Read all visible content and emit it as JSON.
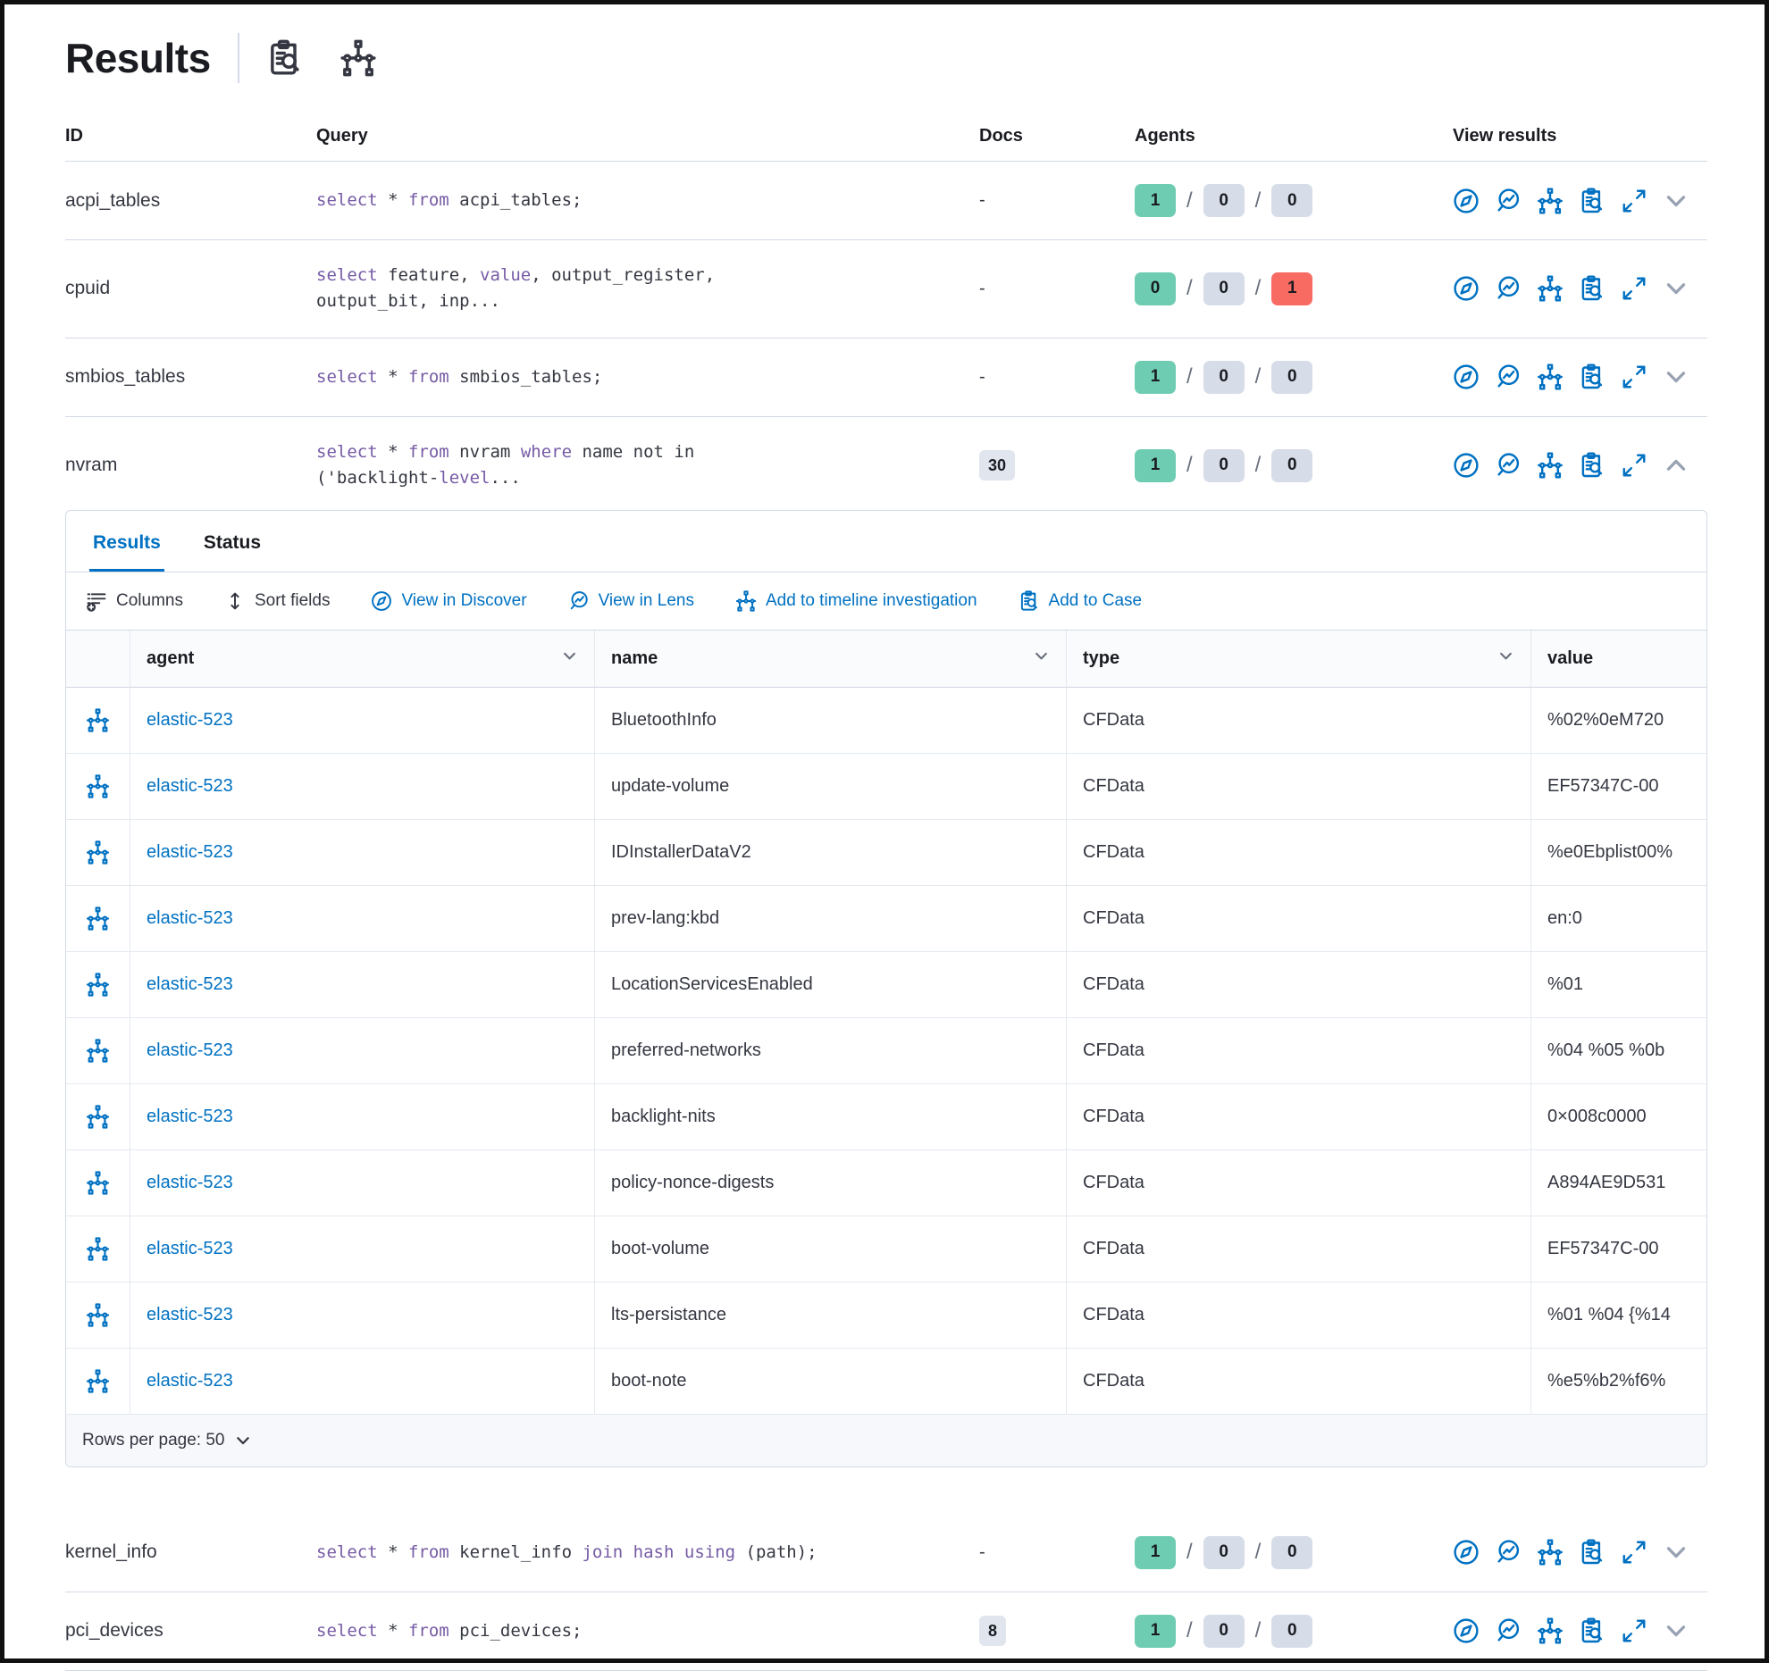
{
  "page": {
    "title": "Results"
  },
  "queries_table": {
    "columns": [
      "ID",
      "Query",
      "Docs",
      "Agents",
      "View results"
    ],
    "rows_top": [
      {
        "id": "acpi_tables",
        "docs": "-",
        "docs_badge": false,
        "agents": [
          "1",
          "0",
          "0"
        ],
        "error": false,
        "expanded": false,
        "query": [
          [
            [
              "select",
              1
            ],
            [
              " * ",
              0
            ],
            [
              "from",
              1
            ],
            [
              " acpi_tables;",
              0
            ]
          ]
        ]
      },
      {
        "id": "cpuid",
        "docs": "-",
        "docs_badge": false,
        "agents": [
          "0",
          "0",
          "1"
        ],
        "error": true,
        "expanded": false,
        "query": [
          [
            [
              "select",
              1
            ],
            [
              " feature, ",
              0
            ],
            [
              "value",
              1
            ],
            [
              ", output_register,",
              0
            ]
          ],
          [
            [
              "output_bit, inp...",
              0
            ]
          ]
        ]
      },
      {
        "id": "smbios_tables",
        "docs": "-",
        "docs_badge": false,
        "agents": [
          "1",
          "0",
          "0"
        ],
        "error": false,
        "expanded": false,
        "query": [
          [
            [
              "select",
              1
            ],
            [
              " * ",
              0
            ],
            [
              "from",
              1
            ],
            [
              " smbios_tables;",
              0
            ]
          ]
        ]
      },
      {
        "id": "nvram",
        "docs": "30",
        "docs_badge": true,
        "agents": [
          "1",
          "0",
          "0"
        ],
        "error": false,
        "expanded": true,
        "query": [
          [
            [
              "select",
              1
            ],
            [
              " * ",
              0
            ],
            [
              "from",
              1
            ],
            [
              " nvram ",
              0
            ],
            [
              "where",
              1
            ],
            [
              " name not in",
              0
            ]
          ],
          [
            [
              "('backlight-",
              0
            ],
            [
              "level",
              1
            ],
            [
              "...",
              0
            ]
          ]
        ]
      }
    ],
    "rows_bottom": [
      {
        "id": "kernel_info",
        "docs": "-",
        "docs_badge": false,
        "agents": [
          "1",
          "0",
          "0"
        ],
        "error": false,
        "expanded": false,
        "query": [
          [
            [
              "select",
              1
            ],
            [
              " * ",
              0
            ],
            [
              "from",
              1
            ],
            [
              " kernel_info ",
              0
            ],
            [
              "join",
              1
            ],
            [
              " ",
              0
            ],
            [
              "hash",
              1
            ],
            [
              " ",
              0
            ],
            [
              "using",
              1
            ],
            [
              " (path);",
              0
            ]
          ]
        ]
      },
      {
        "id": "pci_devices",
        "docs": "8",
        "docs_badge": true,
        "agents": [
          "1",
          "0",
          "0"
        ],
        "error": false,
        "expanded": false,
        "query": [
          [
            [
              "select",
              1
            ],
            [
              " * ",
              0
            ],
            [
              "from",
              1
            ],
            [
              " pci_devices;",
              0
            ]
          ]
        ]
      }
    ]
  },
  "panel": {
    "tabs": [
      {
        "label": "Results",
        "active": true
      },
      {
        "label": "Status",
        "active": false
      }
    ],
    "toolbar": [
      {
        "label": "Columns",
        "icon": "columns-icon",
        "primary": false
      },
      {
        "label": "Sort fields",
        "icon": "sort-icon",
        "primary": false
      },
      {
        "label": "View in Discover",
        "icon": "discover-icon",
        "primary": true
      },
      {
        "label": "View in Lens",
        "icon": "lens-icon",
        "primary": true
      },
      {
        "label": "Add to timeline investigation",
        "icon": "timeline-icon",
        "primary": true
      },
      {
        "label": "Add to Case",
        "icon": "case-icon",
        "primary": true
      }
    ],
    "grid": {
      "columns": [
        "agent",
        "name",
        "type",
        "value"
      ],
      "rows": [
        {
          "agent": "elastic-523",
          "name": "BluetoothInfo",
          "type": "CFData",
          "value": "%02%0eM720"
        },
        {
          "agent": "elastic-523",
          "name": "update-volume",
          "type": "CFData",
          "value": "EF57347C-00"
        },
        {
          "agent": "elastic-523",
          "name": "IDInstallerDataV2",
          "type": "CFData",
          "value": "%e0Ebplist00%"
        },
        {
          "agent": "elastic-523",
          "name": "prev-lang:kbd",
          "type": "CFData",
          "value": "en:0"
        },
        {
          "agent": "elastic-523",
          "name": "LocationServicesEnabled",
          "type": "CFData",
          "value": "%01"
        },
        {
          "agent": "elastic-523",
          "name": "preferred-networks",
          "type": "CFData",
          "value": "%04 %05 %0b"
        },
        {
          "agent": "elastic-523",
          "name": "backlight-nits",
          "type": "CFData",
          "value": "0×008c0000"
        },
        {
          "agent": "elastic-523",
          "name": "policy-nonce-digests",
          "type": "CFData",
          "value": "A894AE9D531"
        },
        {
          "agent": "elastic-523",
          "name": "boot-volume",
          "type": "CFData",
          "value": "EF57347C-00"
        },
        {
          "agent": "elastic-523",
          "name": "lts-persistance",
          "type": "CFData",
          "value": "%01 %04 {%14"
        },
        {
          "agent": "elastic-523",
          "name": "boot-note",
          "type": "CFData",
          "value": "%e5%b2%f6%"
        }
      ]
    },
    "footer": {
      "rows_per_page": "Rows per page: 50"
    }
  },
  "colors": {
    "primary": "#0071c2",
    "keyword": "#765ba5",
    "success_badge": "#6dccb1",
    "neutral_badge": "#d6dce8",
    "danger_badge": "#f86b63",
    "border": "#d3dae6"
  }
}
